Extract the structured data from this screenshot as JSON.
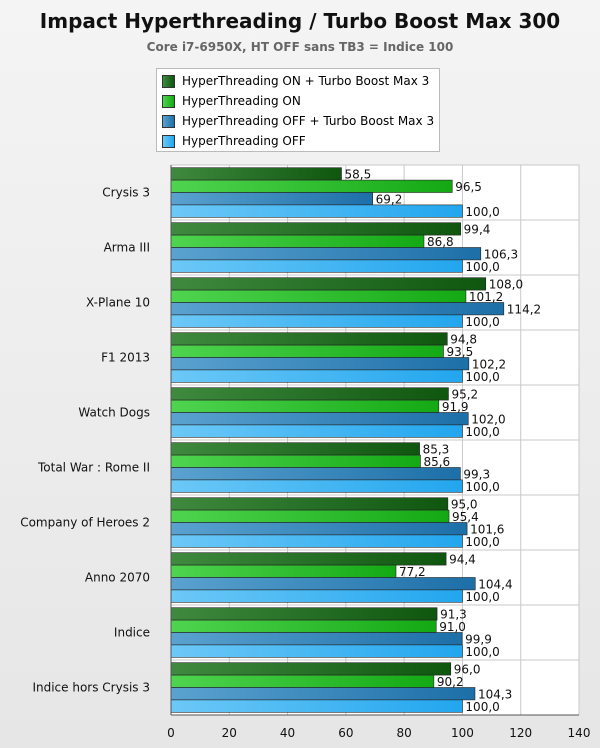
{
  "chart_data": {
    "type": "bar",
    "orientation": "horizontal",
    "title": "Impact Hyperthreading / Turbo Boost Max 300",
    "subtitle": "Core i7-6950X, HT OFF sans TB3 = Indice 100",
    "categories": [
      "Crysis 3",
      "Arma III",
      "X-Plane 10",
      "F1 2013",
      "Watch Dogs",
      "Total War : Rome II",
      "Company of Heroes 2",
      "Anno 2070",
      "Indice",
      "Indice hors Crysis 3"
    ],
    "series": [
      {
        "name": "HyperThreading ON + Turbo Boost Max 3",
        "color": "#1f6e1f",
        "values": [
          58.5,
          99.4,
          108.0,
          94.8,
          95.2,
          85.3,
          95.0,
          94.4,
          91.3,
          96.0
        ],
        "labels": [
          "58,5",
          "99,4",
          "108,0",
          "94,8",
          "95,2",
          "85,3",
          "95,0",
          "94,4",
          "91,3",
          "96,0"
        ]
      },
      {
        "name": "HyperThreading ON",
        "color": "#22c022",
        "values": [
          96.5,
          86.8,
          101.2,
          93.5,
          91.9,
          85.6,
          95.4,
          77.2,
          91.0,
          90.2
        ],
        "labels": [
          "96,5",
          "86,8",
          "101,2",
          "93,5",
          "91,9",
          "85,6",
          "95,4",
          "77,2",
          "91,0",
          "90,2"
        ]
      },
      {
        "name": "HyperThreading OFF + Turbo Boost Max 3",
        "color": "#2f86bf",
        "values": [
          69.2,
          106.3,
          114.2,
          102.2,
          102.0,
          99.3,
          101.6,
          104.4,
          99.9,
          104.3
        ],
        "labels": [
          "69,2",
          "106,3",
          "114,2",
          "102,2",
          "102,0",
          "99,3",
          "101,6",
          "104,4",
          "99,9",
          "104,3"
        ]
      },
      {
        "name": "HyperThreading OFF",
        "color": "#37b5f5",
        "values": [
          100.0,
          100.0,
          100.0,
          100.0,
          100.0,
          100.0,
          100.0,
          100.0,
          100.0,
          100.0
        ],
        "labels": [
          "100,0",
          "100,0",
          "100,0",
          "100,0",
          "100,0",
          "100,0",
          "100,0",
          "100,0",
          "100,0",
          "100,0"
        ]
      }
    ],
    "xlim": [
      0,
      140
    ],
    "xticks": [
      "0",
      "20",
      "40",
      "60",
      "80",
      "100",
      "120",
      "140"
    ],
    "grid": true,
    "legend_position": "top-left"
  }
}
